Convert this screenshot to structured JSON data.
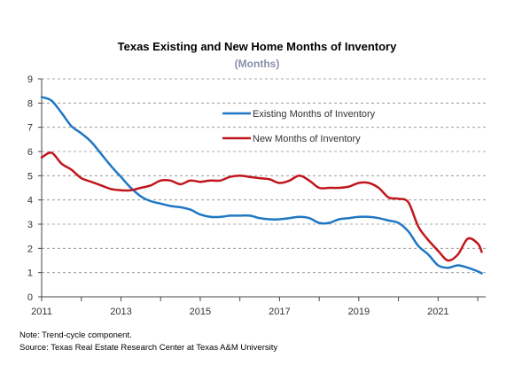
{
  "chart_data": {
    "type": "line",
    "title": "Texas Existing and New Home Months of Inventory",
    "subtitle": "(Months)",
    "xlabel": "",
    "ylabel": "",
    "xlim": [
      2011,
      2022.2
    ],
    "ylim": [
      0,
      9
    ],
    "y_ticks": [
      "0",
      "1",
      "2",
      "3",
      "4",
      "5",
      "6",
      "7",
      "8",
      "9"
    ],
    "x_ticks": [
      {
        "value": 2011,
        "label": "2011"
      },
      {
        "value": 2013,
        "label": "2013"
      },
      {
        "value": 2015,
        "label": "2015"
      },
      {
        "value": 2017,
        "label": "2017"
      },
      {
        "value": 2019,
        "label": "2019"
      },
      {
        "value": 2021,
        "label": "2021"
      }
    ],
    "grid": "horizontal-dashed",
    "legend_position": "top-right",
    "series": [
      {
        "name": "Existing Months of Inventory",
        "color": "#1f77c4",
        "points": [
          [
            2011.0,
            8.25
          ],
          [
            2011.25,
            8.1
          ],
          [
            2011.5,
            7.6
          ],
          [
            2011.75,
            7.05
          ],
          [
            2012.0,
            6.75
          ],
          [
            2012.25,
            6.4
          ],
          [
            2012.5,
            5.9
          ],
          [
            2012.75,
            5.4
          ],
          [
            2013.0,
            4.95
          ],
          [
            2013.25,
            4.5
          ],
          [
            2013.5,
            4.15
          ],
          [
            2013.75,
            3.95
          ],
          [
            2014.0,
            3.85
          ],
          [
            2014.25,
            3.75
          ],
          [
            2014.5,
            3.7
          ],
          [
            2014.75,
            3.6
          ],
          [
            2015.0,
            3.4
          ],
          [
            2015.25,
            3.3
          ],
          [
            2015.5,
            3.3
          ],
          [
            2015.75,
            3.35
          ],
          [
            2016.0,
            3.35
          ],
          [
            2016.25,
            3.35
          ],
          [
            2016.5,
            3.25
          ],
          [
            2016.75,
            3.2
          ],
          [
            2017.0,
            3.2
          ],
          [
            2017.25,
            3.25
          ],
          [
            2017.5,
            3.3
          ],
          [
            2017.75,
            3.25
          ],
          [
            2018.0,
            3.05
          ],
          [
            2018.25,
            3.05
          ],
          [
            2018.5,
            3.2
          ],
          [
            2018.75,
            3.25
          ],
          [
            2019.0,
            3.3
          ],
          [
            2019.25,
            3.3
          ],
          [
            2019.5,
            3.25
          ],
          [
            2019.75,
            3.15
          ],
          [
            2020.0,
            3.05
          ],
          [
            2020.25,
            2.7
          ],
          [
            2020.5,
            2.1
          ],
          [
            2020.75,
            1.75
          ],
          [
            2021.0,
            1.3
          ],
          [
            2021.25,
            1.2
          ],
          [
            2021.5,
            1.3
          ],
          [
            2021.75,
            1.2
          ],
          [
            2022.0,
            1.05
          ],
          [
            2022.1,
            0.97
          ]
        ]
      },
      {
        "name": "New Months of Inventory",
        "color": "#c0161c",
        "points": [
          [
            2011.0,
            5.75
          ],
          [
            2011.25,
            5.95
          ],
          [
            2011.5,
            5.5
          ],
          [
            2011.75,
            5.25
          ],
          [
            2012.0,
            4.9
          ],
          [
            2012.25,
            4.75
          ],
          [
            2012.5,
            4.6
          ],
          [
            2012.75,
            4.45
          ],
          [
            2013.0,
            4.4
          ],
          [
            2013.25,
            4.4
          ],
          [
            2013.5,
            4.5
          ],
          [
            2013.75,
            4.6
          ],
          [
            2014.0,
            4.8
          ],
          [
            2014.25,
            4.8
          ],
          [
            2014.5,
            4.65
          ],
          [
            2014.75,
            4.8
          ],
          [
            2015.0,
            4.75
          ],
          [
            2015.25,
            4.8
          ],
          [
            2015.5,
            4.8
          ],
          [
            2015.75,
            4.95
          ],
          [
            2016.0,
            5.0
          ],
          [
            2016.25,
            4.95
          ],
          [
            2016.5,
            4.9
          ],
          [
            2016.75,
            4.85
          ],
          [
            2017.0,
            4.7
          ],
          [
            2017.25,
            4.8
          ],
          [
            2017.5,
            5.0
          ],
          [
            2017.75,
            4.8
          ],
          [
            2018.0,
            4.5
          ],
          [
            2018.25,
            4.5
          ],
          [
            2018.5,
            4.5
          ],
          [
            2018.75,
            4.55
          ],
          [
            2019.0,
            4.7
          ],
          [
            2019.25,
            4.7
          ],
          [
            2019.5,
            4.5
          ],
          [
            2019.75,
            4.1
          ],
          [
            2020.0,
            4.05
          ],
          [
            2020.25,
            3.9
          ],
          [
            2020.5,
            2.9
          ],
          [
            2020.75,
            2.35
          ],
          [
            2021.0,
            1.9
          ],
          [
            2021.25,
            1.5
          ],
          [
            2021.5,
            1.75
          ],
          [
            2021.75,
            2.4
          ],
          [
            2022.0,
            2.2
          ],
          [
            2022.1,
            1.85
          ]
        ]
      }
    ]
  },
  "footer": {
    "note": "Note: Trend-cycle component.",
    "source": "Source: Texas Real Estate Research Center at Texas A&M University"
  }
}
